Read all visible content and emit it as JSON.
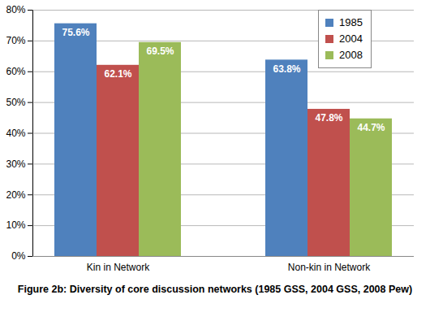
{
  "chart_data": {
    "type": "bar",
    "caption": "Figure 2b: Diversity of core discussion networks (1985 GSS, 2004 GSS, 2008 Pew)",
    "categories": [
      "Kin in Network",
      "Non-kin in Network"
    ],
    "series": [
      {
        "name": "1985",
        "color": "#4F81BD",
        "values": [
          75.6,
          63.8
        ],
        "value_labels": [
          "75.6%",
          "63.8%"
        ]
      },
      {
        "name": "2004",
        "color": "#C0504D",
        "values": [
          62.1,
          47.8
        ],
        "value_labels": [
          "62.1%",
          "47.8%"
        ]
      },
      {
        "name": "2008",
        "color": "#9BBB59",
        "values": [
          69.5,
          44.7
        ],
        "value_labels": [
          "69.5%",
          "44.7%"
        ]
      }
    ],
    "ylim": [
      0,
      80
    ],
    "yticks": [
      {
        "value": 0,
        "label": "0%"
      },
      {
        "value": 10,
        "label": "10%"
      },
      {
        "value": 20,
        "label": "20%"
      },
      {
        "value": 30,
        "label": "30%"
      },
      {
        "value": 40,
        "label": "40%"
      },
      {
        "value": 50,
        "label": "50%"
      },
      {
        "value": 60,
        "label": "60%"
      },
      {
        "value": 70,
        "label": "70%"
      },
      {
        "value": 80,
        "label": "80%"
      }
    ],
    "grid": true,
    "legend": "top-right",
    "data_labels": true
  }
}
